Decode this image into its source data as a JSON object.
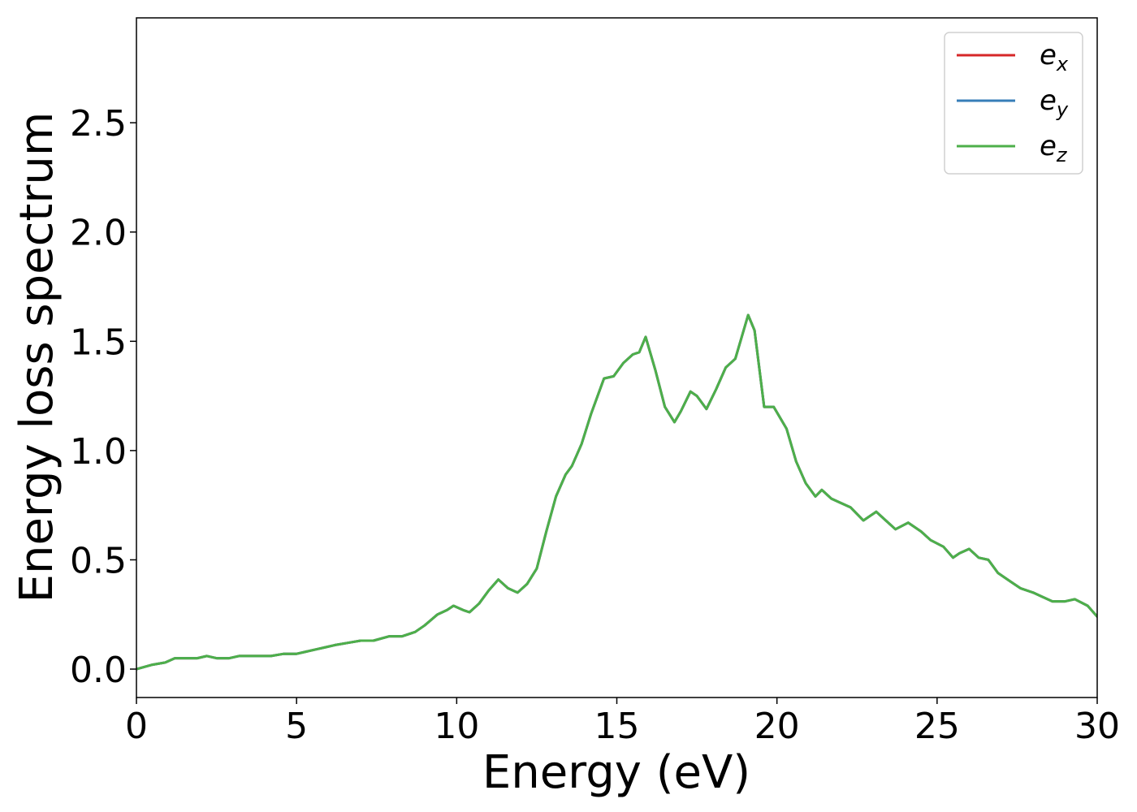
{
  "chart_data": {
    "type": "line",
    "title": "",
    "xlabel": "Energy (eV)",
    "ylabel": "Energy loss spectrum",
    "xlim": [
      0,
      30
    ],
    "ylim": [
      -0.13,
      2.98
    ],
    "xticks": [
      0,
      5,
      10,
      15,
      20,
      25,
      30
    ],
    "xtick_labels": [
      "0",
      "5",
      "10",
      "15",
      "20",
      "25",
      "30"
    ],
    "yticks": [
      0.0,
      0.5,
      1.0,
      1.5,
      2.0,
      2.5
    ],
    "ytick_labels": [
      "0.0",
      "0.5",
      "1.0",
      "1.5",
      "2.0",
      "2.5"
    ],
    "grid": false,
    "legend_position": "top-right",
    "x": [
      0.0,
      0.5,
      0.9,
      1.2,
      1.5,
      1.9,
      2.2,
      2.5,
      2.9,
      3.2,
      3.5,
      3.9,
      4.2,
      4.6,
      5.0,
      5.3,
      5.6,
      5.9,
      6.2,
      6.6,
      7.0,
      7.4,
      7.9,
      8.3,
      8.7,
      9.0,
      9.4,
      9.7,
      9.9,
      10.2,
      10.4,
      10.7,
      11.0,
      11.3,
      11.6,
      11.9,
      12.2,
      12.5,
      12.8,
      13.1,
      13.4,
      13.6,
      13.9,
      14.2,
      14.6,
      14.9,
      15.2,
      15.5,
      15.7,
      15.9,
      16.2,
      16.5,
      16.8,
      17.0,
      17.3,
      17.5,
      17.8,
      18.1,
      18.4,
      18.7,
      19.1,
      19.3,
      19.6,
      19.9,
      20.3,
      20.6,
      20.9,
      21.2,
      21.4,
      21.7,
      22.0,
      22.3,
      22.7,
      23.1,
      23.4,
      23.7,
      24.1,
      24.5,
      24.8,
      25.2,
      25.5,
      25.7,
      26.0,
      26.3,
      26.6,
      26.9,
      27.3,
      27.6,
      28.0,
      28.3,
      28.6,
      29.0,
      29.3,
      29.7,
      30.0
    ],
    "series": [
      {
        "name": "e_x",
        "color": "#d62728",
        "values": [
          0.0,
          0.02,
          0.03,
          0.05,
          0.05,
          0.05,
          0.06,
          0.05,
          0.05,
          0.06,
          0.06,
          0.06,
          0.06,
          0.07,
          0.07,
          0.08,
          0.09,
          0.1,
          0.11,
          0.12,
          0.13,
          0.13,
          0.15,
          0.15,
          0.17,
          0.2,
          0.25,
          0.27,
          0.29,
          0.27,
          0.26,
          0.3,
          0.36,
          0.41,
          0.37,
          0.35,
          0.39,
          0.46,
          0.63,
          0.79,
          0.89,
          0.93,
          1.03,
          1.17,
          1.33,
          1.34,
          1.4,
          1.44,
          1.45,
          1.52,
          1.37,
          1.2,
          1.13,
          1.18,
          1.27,
          1.25,
          1.19,
          1.28,
          1.38,
          1.42,
          1.62,
          1.55,
          1.2,
          1.2,
          1.1,
          0.95,
          0.85,
          0.79,
          0.82,
          0.78,
          0.76,
          0.74,
          0.68,
          0.72,
          0.68,
          0.64,
          0.67,
          0.63,
          0.59,
          0.56,
          0.51,
          0.53,
          0.55,
          0.51,
          0.5,
          0.44,
          0.4,
          0.37,
          0.35,
          0.33,
          0.31,
          0.31,
          0.32,
          0.29,
          0.24
        ]
      },
      {
        "name": "e_y",
        "color": "#377eb8",
        "values": [
          0.0,
          0.02,
          0.03,
          0.05,
          0.05,
          0.05,
          0.06,
          0.05,
          0.05,
          0.06,
          0.06,
          0.06,
          0.06,
          0.07,
          0.07,
          0.08,
          0.09,
          0.1,
          0.11,
          0.12,
          0.13,
          0.13,
          0.15,
          0.15,
          0.17,
          0.2,
          0.25,
          0.27,
          0.29,
          0.27,
          0.26,
          0.3,
          0.36,
          0.41,
          0.37,
          0.35,
          0.39,
          0.46,
          0.63,
          0.79,
          0.89,
          0.93,
          1.03,
          1.17,
          1.33,
          1.34,
          1.4,
          1.44,
          1.45,
          1.52,
          1.37,
          1.2,
          1.13,
          1.18,
          1.27,
          1.25,
          1.19,
          1.28,
          1.38,
          1.42,
          1.62,
          1.55,
          1.2,
          1.2,
          1.1,
          0.95,
          0.85,
          0.79,
          0.82,
          0.78,
          0.76,
          0.74,
          0.68,
          0.72,
          0.68,
          0.64,
          0.67,
          0.63,
          0.59,
          0.56,
          0.51,
          0.53,
          0.55,
          0.51,
          0.5,
          0.44,
          0.4,
          0.37,
          0.35,
          0.33,
          0.31,
          0.31,
          0.32,
          0.29,
          0.24
        ]
      },
      {
        "name": "e_z",
        "color": "#4daf4a",
        "values": [
          0.0,
          0.02,
          0.03,
          0.05,
          0.05,
          0.05,
          0.06,
          0.05,
          0.05,
          0.06,
          0.06,
          0.06,
          0.06,
          0.07,
          0.07,
          0.08,
          0.09,
          0.1,
          0.11,
          0.12,
          0.13,
          0.13,
          0.15,
          0.15,
          0.17,
          0.2,
          0.25,
          0.27,
          0.29,
          0.27,
          0.26,
          0.3,
          0.36,
          0.41,
          0.37,
          0.35,
          0.39,
          0.46,
          0.63,
          0.79,
          0.89,
          0.93,
          1.03,
          1.17,
          1.33,
          1.34,
          1.4,
          1.44,
          1.45,
          1.52,
          1.37,
          1.2,
          1.13,
          1.18,
          1.27,
          1.25,
          1.19,
          1.28,
          1.38,
          1.42,
          1.62,
          1.55,
          1.2,
          1.2,
          1.1,
          0.95,
          0.85,
          0.79,
          0.82,
          0.78,
          0.76,
          0.74,
          0.68,
          0.72,
          0.68,
          0.64,
          0.67,
          0.63,
          0.59,
          0.56,
          0.51,
          0.53,
          0.55,
          0.51,
          0.5,
          0.44,
          0.4,
          0.37,
          0.35,
          0.33,
          0.31,
          0.31,
          0.32,
          0.29,
          0.24
        ]
      }
    ],
    "legend": [
      {
        "base": "e",
        "sub": "x",
        "color": "#d62728"
      },
      {
        "base": "e",
        "sub": "y",
        "color": "#377eb8"
      },
      {
        "base": "e",
        "sub": "z",
        "color": "#4daf4a"
      }
    ]
  }
}
